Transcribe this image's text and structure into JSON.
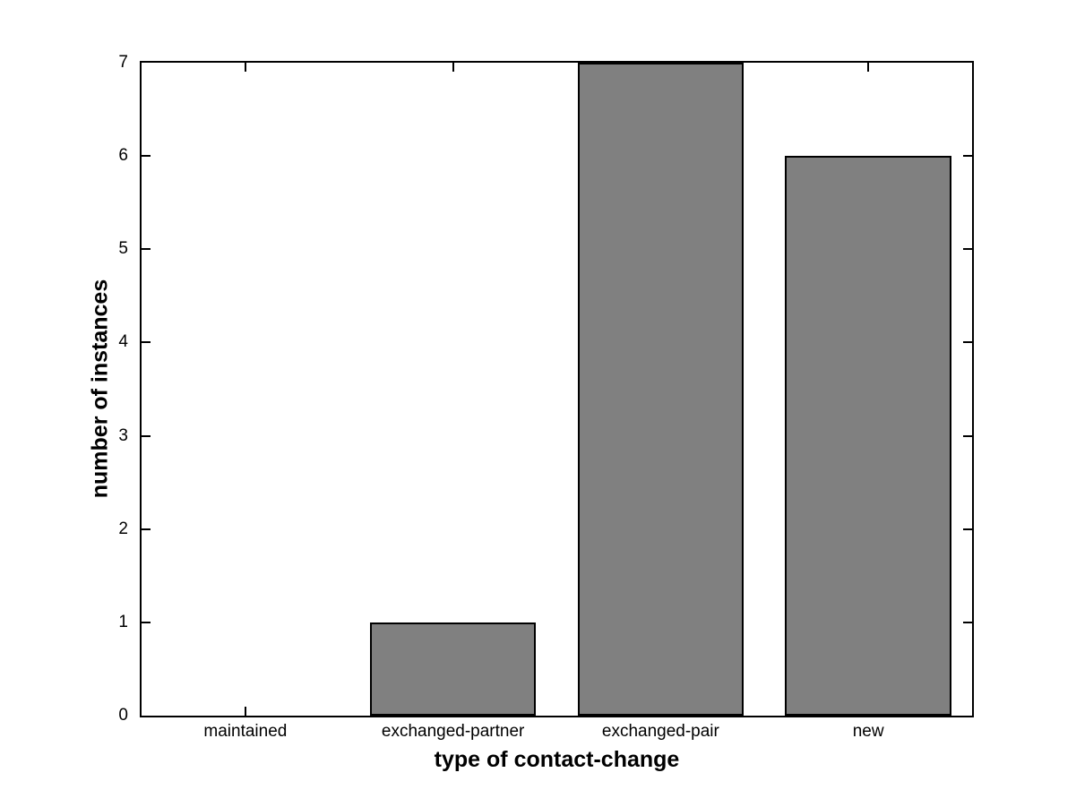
{
  "chart_data": {
    "type": "bar",
    "categories": [
      "maintained",
      "exchanged-partner",
      "exchanged-pair",
      "new"
    ],
    "values": [
      0,
      1,
      7,
      6
    ],
    "title": "",
    "xlabel": "type of contact-change",
    "ylabel": "number of instances",
    "ylim": [
      0,
      7
    ],
    "yticks": [
      "0",
      "1",
      "2",
      "3",
      "4",
      "5",
      "6",
      "7"
    ],
    "bar_width_fraction": 0.8,
    "grid": false,
    "legend": null,
    "colors": {
      "bar_fill": "#808080",
      "bar_edge": "#000000",
      "axis": "#000000",
      "background": "#ffffff"
    }
  }
}
